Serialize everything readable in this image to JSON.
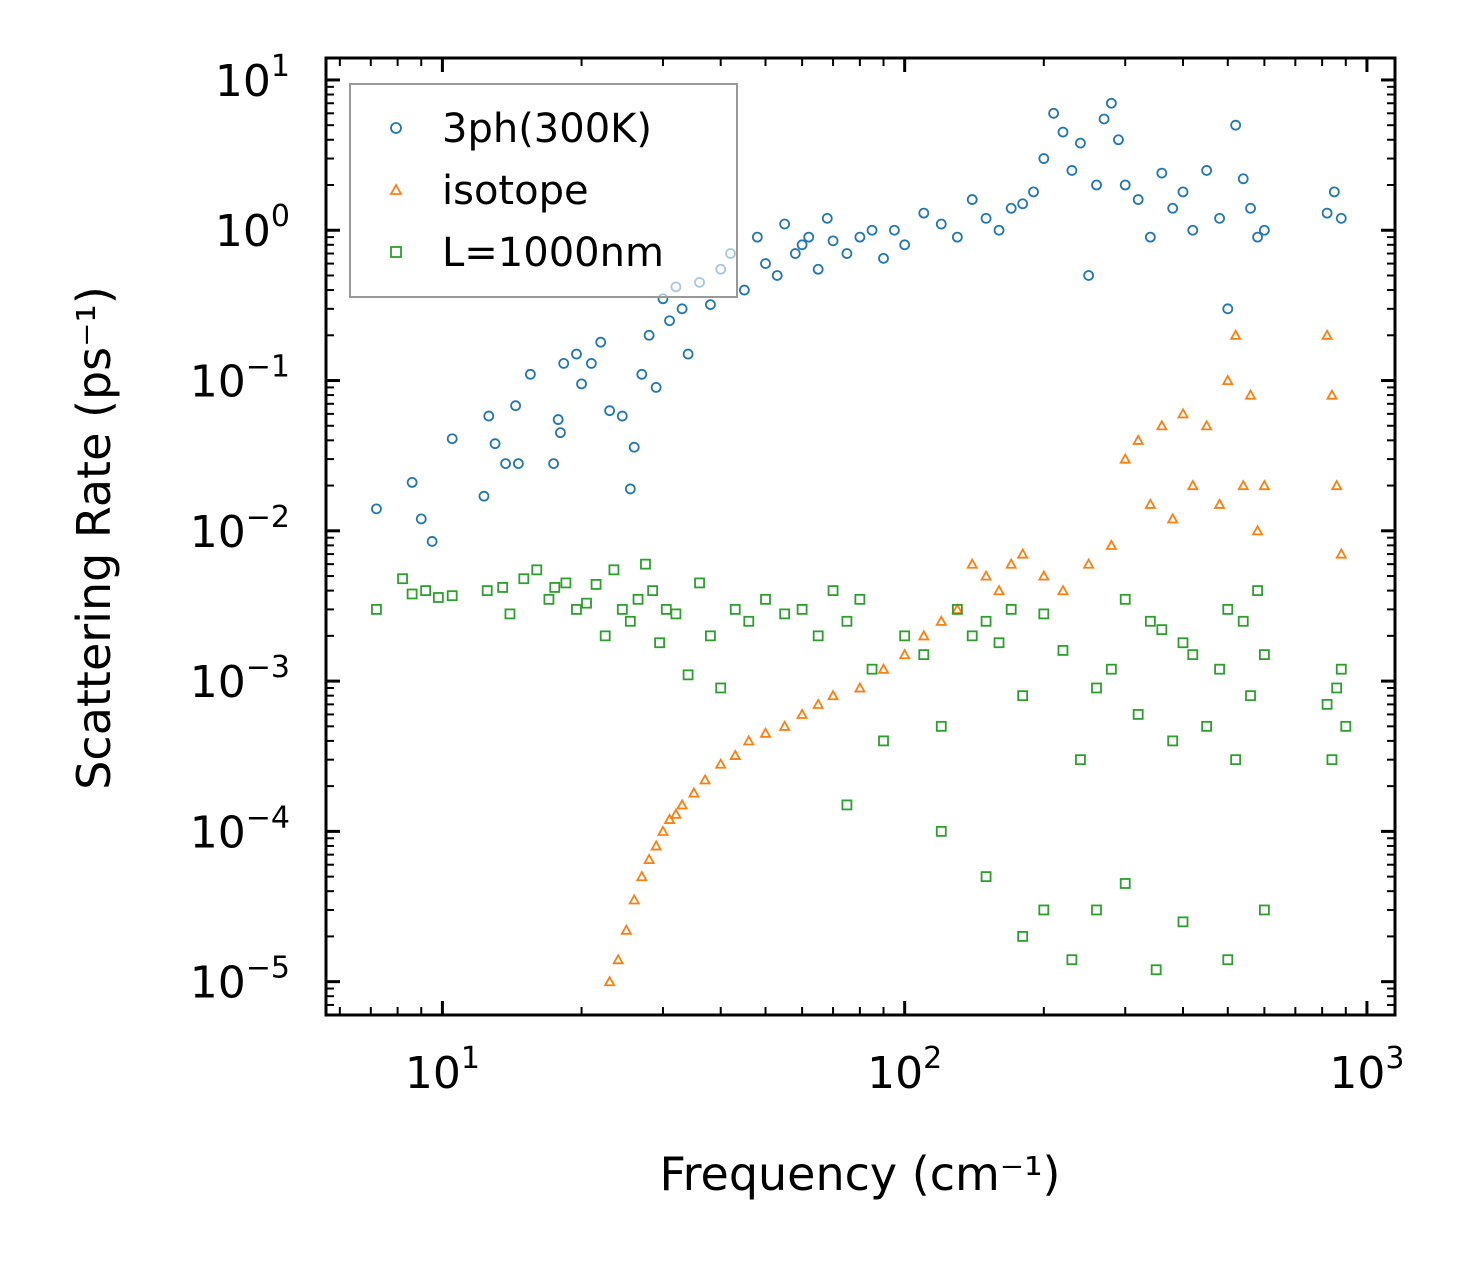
{
  "chart_data": {
    "type": "scatter",
    "title": "",
    "xlabel": "Frequency (cm⁻¹)",
    "ylabel": "Scattering Rate (ps⁻¹)",
    "xscale": "log",
    "yscale": "log",
    "xlim": [
      5.6,
      1150
    ],
    "ylim": [
      6e-06,
      14
    ],
    "x_ticks": [
      {
        "value": 10,
        "base": "10",
        "exp": "1"
      },
      {
        "value": 100,
        "base": "10",
        "exp": "2"
      },
      {
        "value": 1000,
        "base": "10",
        "exp": "3"
      }
    ],
    "y_ticks": [
      {
        "value": 1e-05,
        "base": "10",
        "exp": "−5"
      },
      {
        "value": 0.0001,
        "base": "10",
        "exp": "−4"
      },
      {
        "value": 0.001,
        "base": "10",
        "exp": "−3"
      },
      {
        "value": 0.01,
        "base": "10",
        "exp": "−2"
      },
      {
        "value": 0.1,
        "base": "10",
        "exp": "−1"
      },
      {
        "value": 1,
        "base": "10",
        "exp": "0"
      },
      {
        "value": 10,
        "base": "10",
        "exp": "1"
      }
    ],
    "legend_position": "top-left",
    "grid": false,
    "series": [
      {
        "name": "3ph(300K)",
        "color": "#1f77b4",
        "marker": "circle",
        "x": [
          7.2,
          8.6,
          9.0,
          9.5,
          10.5,
          12.3,
          12.6,
          13.0,
          13.7,
          14.4,
          14.6,
          15.5,
          17.4,
          17.8,
          18.0,
          18.3,
          19.5,
          20.0,
          21.0,
          22.0,
          23.0,
          24.5,
          25.5,
          26.0,
          27.0,
          28.0,
          29.0,
          30.0,
          31.0,
          32.0,
          33.0,
          34.0,
          36.0,
          38.0,
          40.0,
          42.0,
          45.0,
          48.0,
          50.0,
          53.0,
          55.0,
          58.0,
          60.0,
          62.0,
          65.0,
          68.0,
          70.0,
          75.0,
          80.0,
          85.0,
          90.0,
          95.0,
          100.0,
          110.0,
          120.0,
          130.0,
          140.0,
          150.0,
          160.0,
          170.0,
          180.0,
          190.0,
          200.0,
          210.0,
          220.0,
          230.0,
          240.0,
          250.0,
          260.0,
          270.0,
          280.0,
          290.0,
          300.0,
          320.0,
          340.0,
          360.0,
          380.0,
          400.0,
          420.0,
          450.0,
          480.0,
          500.0,
          520.0,
          540.0,
          560.0,
          580.0,
          600.0,
          820.0,
          850.0,
          880.0
        ],
        "y": [
          0.014,
          0.021,
          0.012,
          0.0085,
          0.041,
          0.017,
          0.058,
          0.038,
          0.028,
          0.068,
          0.028,
          0.11,
          0.028,
          0.055,
          0.045,
          0.13,
          0.15,
          0.095,
          0.13,
          0.18,
          0.063,
          0.058,
          0.019,
          0.036,
          0.11,
          0.2,
          0.09,
          0.35,
          0.25,
          0.42,
          0.3,
          0.15,
          0.45,
          0.32,
          0.55,
          0.7,
          0.4,
          0.9,
          0.6,
          0.5,
          1.1,
          0.7,
          0.8,
          0.9,
          0.55,
          1.2,
          0.85,
          0.7,
          0.9,
          1.0,
          0.65,
          1.0,
          0.8,
          1.3,
          1.1,
          0.9,
          1.6,
          1.2,
          1.0,
          1.4,
          1.5,
          1.8,
          3.0,
          6.0,
          4.5,
          2.5,
          3.8,
          0.5,
          2.0,
          5.5,
          7.0,
          4.0,
          2.0,
          1.6,
          0.9,
          2.4,
          1.4,
          1.8,
          1.0,
          2.5,
          1.2,
          0.3,
          5.0,
          2.2,
          1.4,
          0.9,
          1.0,
          1.3,
          1.8,
          1.2
        ]
      },
      {
        "name": "isotope",
        "color": "#ff7f0e",
        "marker": "triangle",
        "x": [
          23.0,
          24.0,
          25.0,
          26.0,
          27.0,
          28.0,
          29.0,
          30.0,
          31.0,
          32.0,
          33.0,
          35.0,
          37.0,
          40.0,
          43.0,
          46.0,
          50.0,
          55.0,
          60.0,
          65.0,
          70.0,
          80.0,
          90.0,
          100.0,
          110.0,
          120.0,
          130.0,
          140.0,
          150.0,
          160.0,
          170.0,
          180.0,
          200.0,
          220.0,
          250.0,
          280.0,
          300.0,
          320.0,
          340.0,
          360.0,
          380.0,
          400.0,
          420.0,
          450.0,
          480.0,
          500.0,
          520.0,
          540.0,
          560.0,
          580.0,
          600.0,
          820.0,
          840.0,
          860.0,
          880.0
        ],
        "y": [
          1e-05,
          1.4e-05,
          2.2e-05,
          3.5e-05,
          5e-05,
          6.5e-05,
          8e-05,
          0.0001,
          0.00012,
          0.00013,
          0.00015,
          0.00018,
          0.00022,
          0.00028,
          0.00032,
          0.0004,
          0.00045,
          0.0005,
          0.0006,
          0.0007,
          0.0008,
          0.0009,
          0.0012,
          0.0015,
          0.002,
          0.0025,
          0.003,
          0.006,
          0.005,
          0.004,
          0.006,
          0.007,
          0.005,
          0.004,
          0.006,
          0.008,
          0.03,
          0.04,
          0.015,
          0.05,
          0.012,
          0.06,
          0.02,
          0.05,
          0.015,
          0.1,
          0.2,
          0.02,
          0.08,
          0.01,
          0.02,
          0.2,
          0.08,
          0.02,
          0.007
        ]
      },
      {
        "name": "L=1000nm",
        "color": "#2ca02c",
        "marker": "square",
        "x": [
          7.2,
          8.2,
          8.6,
          9.2,
          9.8,
          10.5,
          12.5,
          13.5,
          14.0,
          15.0,
          16.0,
          17.0,
          17.5,
          18.5,
          19.5,
          20.5,
          21.5,
          22.5,
          23.5,
          24.5,
          25.5,
          26.5,
          27.5,
          28.5,
          29.5,
          30.5,
          32.0,
          34.0,
          36.0,
          38.0,
          40.0,
          43.0,
          46.0,
          50.0,
          55.0,
          60.0,
          65.0,
          70.0,
          75.0,
          80.0,
          85.0,
          90.0,
          100.0,
          110.0,
          120.0,
          130.0,
          140.0,
          150.0,
          160.0,
          170.0,
          180.0,
          200.0,
          220.0,
          240.0,
          260.0,
          280.0,
          300.0,
          320.0,
          340.0,
          360.0,
          380.0,
          400.0,
          420.0,
          450.0,
          480.0,
          500.0,
          520.0,
          540.0,
          560.0,
          580.0,
          600.0,
          820.0,
          840.0,
          860.0,
          880.0,
          900.0
        ],
        "y": [
          0.003,
          0.0048,
          0.0038,
          0.004,
          0.0036,
          0.0037,
          0.004,
          0.0042,
          0.0028,
          0.0048,
          0.0055,
          0.0035,
          0.0042,
          0.0045,
          0.003,
          0.0033,
          0.0044,
          0.002,
          0.0055,
          0.003,
          0.0025,
          0.0035,
          0.006,
          0.004,
          0.0018,
          0.003,
          0.0028,
          0.0011,
          0.0045,
          0.002,
          0.0009,
          0.003,
          0.0025,
          0.0035,
          0.0028,
          0.003,
          0.002,
          0.004,
          0.0025,
          0.0035,
          0.0012,
          0.0004,
          0.002,
          0.0015,
          0.0005,
          0.003,
          0.002,
          0.0025,
          0.0018,
          0.003,
          0.0008,
          0.0028,
          0.0016,
          0.0003,
          0.0009,
          0.0012,
          0.0035,
          0.0006,
          0.0025,
          0.0022,
          0.0004,
          0.0018,
          0.0015,
          0.0005,
          0.0012,
          0.003,
          0.0003,
          0.0025,
          0.0008,
          0.004,
          0.0015,
          0.0007,
          0.0003,
          0.0009,
          0.0012,
          0.0005
        ],
        "y_low": [
          0.00015,
          0.0001,
          5e-05,
          2e-05,
          3e-05,
          1.4e-05,
          3e-05,
          4.5e-05,
          1.2e-05,
          2.5e-05,
          1.4e-05,
          3e-05
        ],
        "x_low": [
          75.0,
          120.0,
          150.0,
          180.0,
          200.0,
          230.0,
          260.0,
          300.0,
          350.0,
          400.0,
          500.0,
          600.0
        ]
      }
    ]
  }
}
